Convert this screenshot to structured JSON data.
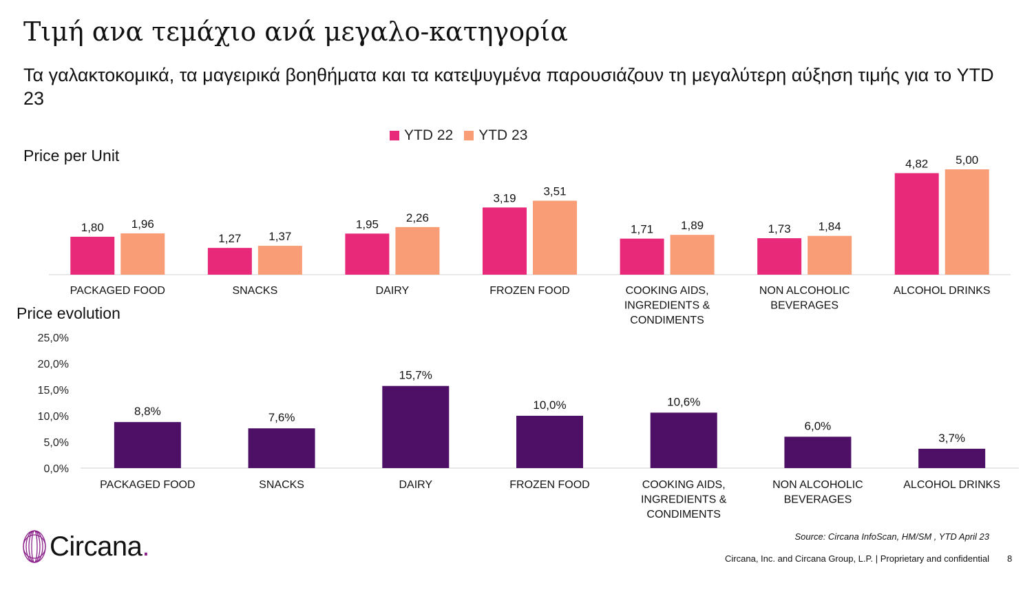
{
  "header": {
    "title": "Τιμή ανα τεμάχιο ανά μεγαλο-κατηγορία",
    "subtitle": "Τα γαλακτοκομικά, τα μαγειρικά βοηθήματα και τα κατεψυγμένα παρουσιάζουν τη μεγαλύτερη αύξηση τιμής για το YTD 23"
  },
  "legend": {
    "items": [
      {
        "label": "YTD 22",
        "color": "#e8297a"
      },
      {
        "label": "YTD 23",
        "color": "#f99d77"
      }
    ]
  },
  "sections": {
    "price_per_unit_label": "Price per Unit",
    "price_evolution_label": "Price evolution"
  },
  "chart_data": [
    {
      "type": "bar",
      "title": "Price per Unit",
      "categories": [
        [
          "PACKAGED FOOD"
        ],
        [
          "SNACKS"
        ],
        [
          "DAIRY"
        ],
        [
          "FROZEN FOOD"
        ],
        [
          "COOKING AIDS,",
          "INGREDIENTS &",
          "CONDIMENTS"
        ],
        [
          "NON ALCOHOLIC",
          "BEVERAGES"
        ],
        [
          "ALCOHOL DRINKS"
        ]
      ],
      "series": [
        {
          "name": "YTD 22",
          "color": "#e8297a",
          "values": [
            1.8,
            1.27,
            1.95,
            3.19,
            1.71,
            1.73,
            4.82
          ],
          "labels": [
            "1,80",
            "1,27",
            "1,95",
            "3,19",
            "1,71",
            "1,73",
            "4,82"
          ]
        },
        {
          "name": "YTD 23",
          "color": "#f99d77",
          "values": [
            1.96,
            1.37,
            2.26,
            3.51,
            1.89,
            1.84,
            5.0
          ],
          "labels": [
            "1,96",
            "1,37",
            "2,26",
            "3,51",
            "1,89",
            "1,84",
            "5,00"
          ]
        }
      ],
      "ylim": [
        0,
        5.0
      ],
      "grid": false,
      "legend": "top-center"
    },
    {
      "type": "bar",
      "title": "Price evolution",
      "categories": [
        [
          "PACKAGED FOOD"
        ],
        [
          "SNACKS"
        ],
        [
          "DAIRY"
        ],
        [
          "FROZEN FOOD"
        ],
        [
          "COOKING AIDS,",
          "INGREDIENTS &",
          "CONDIMENTS"
        ],
        [
          "NON ALCOHOLIC",
          "BEVERAGES"
        ],
        [
          "ALCOHOL DRINKS"
        ]
      ],
      "series": [
        {
          "color": "#4e1066",
          "values": [
            8.8,
            7.6,
            15.7,
            10.0,
            10.6,
            6.0,
            3.7
          ],
          "labels": [
            "8,8%",
            "7,6%",
            "15,7%",
            "10,0%",
            "10,6%",
            "6,0%",
            "3,7%"
          ]
        }
      ],
      "yticks": [
        "0,0%",
        "5,0%",
        "10,0%",
        "15,0%",
        "20,0%",
        "25,0%"
      ],
      "ytick_values": [
        0,
        5,
        10,
        15,
        20,
        25
      ],
      "ylim": [
        0,
        25
      ],
      "grid": false
    }
  ],
  "footer": {
    "logo_text": "Circana",
    "logo_dot": ".",
    "source": "Source: Circana InfoScan, HM/SM , YTD April 23",
    "legal": "Circana, Inc. and Circana Group, L.P. |  Proprietary and confidential",
    "page_number": "8"
  }
}
